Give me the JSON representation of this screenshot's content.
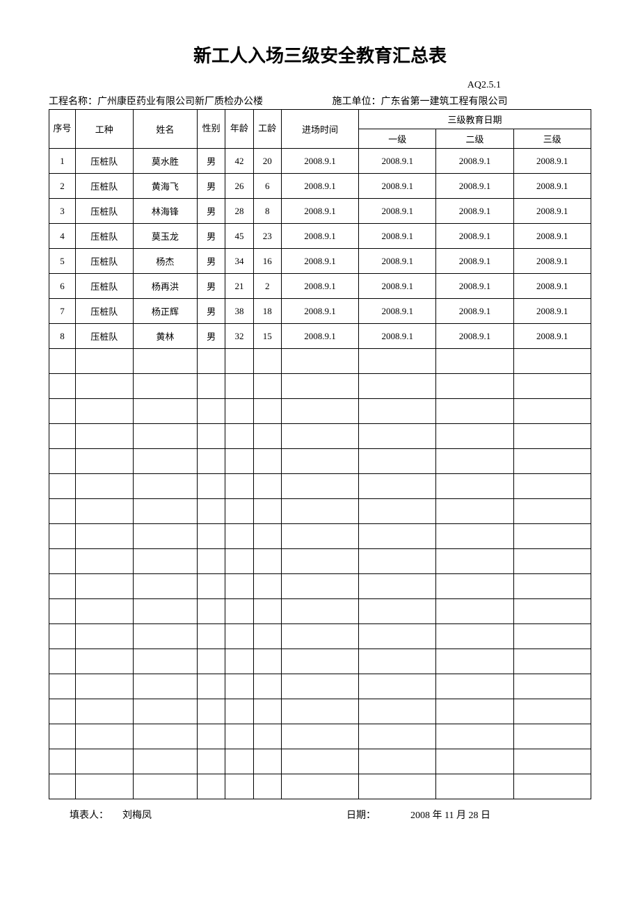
{
  "title": "新工人入场三级安全教育汇总表",
  "doc_number": "AQ2.5.1",
  "header": {
    "project_label": "工程名称：",
    "project_name": "广州康臣药业有限公司新厂质检办公楼",
    "company_label": "施工单位：",
    "company_name": "广东省第一建筑工程有限公司"
  },
  "table": {
    "columns": {
      "seq": "序号",
      "work_type": "工种",
      "name": "姓名",
      "gender": "性别",
      "age": "年龄",
      "experience": "工龄",
      "entry_time": "进场时间",
      "edu_date_group": "三级教育日期",
      "level1": "一级",
      "level2": "二级",
      "level3": "三级"
    },
    "rows": [
      {
        "seq": "1",
        "work_type": "压桩队",
        "name": "莫水胜",
        "gender": "男",
        "age": "42",
        "experience": "20",
        "entry_time": "2008.9.1",
        "level1": "2008.9.1",
        "level2": "2008.9.1",
        "level3": "2008.9.1"
      },
      {
        "seq": "2",
        "work_type": "压桩队",
        "name": "黄海飞",
        "gender": "男",
        "age": "26",
        "experience": "6",
        "entry_time": "2008.9.1",
        "level1": "2008.9.1",
        "level2": "2008.9.1",
        "level3": "2008.9.1"
      },
      {
        "seq": "3",
        "work_type": "压桩队",
        "name": "林海锋",
        "gender": "男",
        "age": "28",
        "experience": "8",
        "entry_time": "2008.9.1",
        "level1": "2008.9.1",
        "level2": "2008.9.1",
        "level3": "2008.9.1"
      },
      {
        "seq": "4",
        "work_type": "压桩队",
        "name": "莫玉龙",
        "gender": "男",
        "age": "45",
        "experience": "23",
        "entry_time": "2008.9.1",
        "level1": "2008.9.1",
        "level2": "2008.9.1",
        "level3": "2008.9.1"
      },
      {
        "seq": "5",
        "work_type": "压桩队",
        "name": "杨杰",
        "gender": "男",
        "age": "34",
        "experience": "16",
        "entry_time": "2008.9.1",
        "level1": "2008.9.1",
        "level2": "2008.9.1",
        "level3": "2008.9.1"
      },
      {
        "seq": "6",
        "work_type": "压桩队",
        "name": "杨再洪",
        "gender": "男",
        "age": "21",
        "experience": "2",
        "entry_time": "2008.9.1",
        "level1": "2008.9.1",
        "level2": "2008.9.1",
        "level3": "2008.9.1"
      },
      {
        "seq": "7",
        "work_type": "压桩队",
        "name": "杨正辉",
        "gender": "男",
        "age": "38",
        "experience": "18",
        "entry_time": "2008.9.1",
        "level1": "2008.9.1",
        "level2": "2008.9.1",
        "level3": "2008.9.1"
      },
      {
        "seq": "8",
        "work_type": "压桩队",
        "name": "黄林",
        "gender": "男",
        "age": "32",
        "experience": "15",
        "entry_time": "2008.9.1",
        "level1": "2008.9.1",
        "level2": "2008.9.1",
        "level3": "2008.9.1"
      }
    ],
    "empty_rows": 18,
    "styling": {
      "border_color": "#000000",
      "border_width": 1.5,
      "background_color": "#ffffff",
      "font_size": 13,
      "header_row_height": 28,
      "data_row_height": 36,
      "col_widths": {
        "seq": 32,
        "work_type": 70,
        "name": 78,
        "gender": 34,
        "age": 34,
        "experience": 34,
        "entry_time": 94,
        "level": 94
      }
    }
  },
  "footer": {
    "filler_label": "填表人：",
    "filler_name": "刘梅凤",
    "date_label": "日期：",
    "date_value": "2008 年 11 月 28 日"
  }
}
